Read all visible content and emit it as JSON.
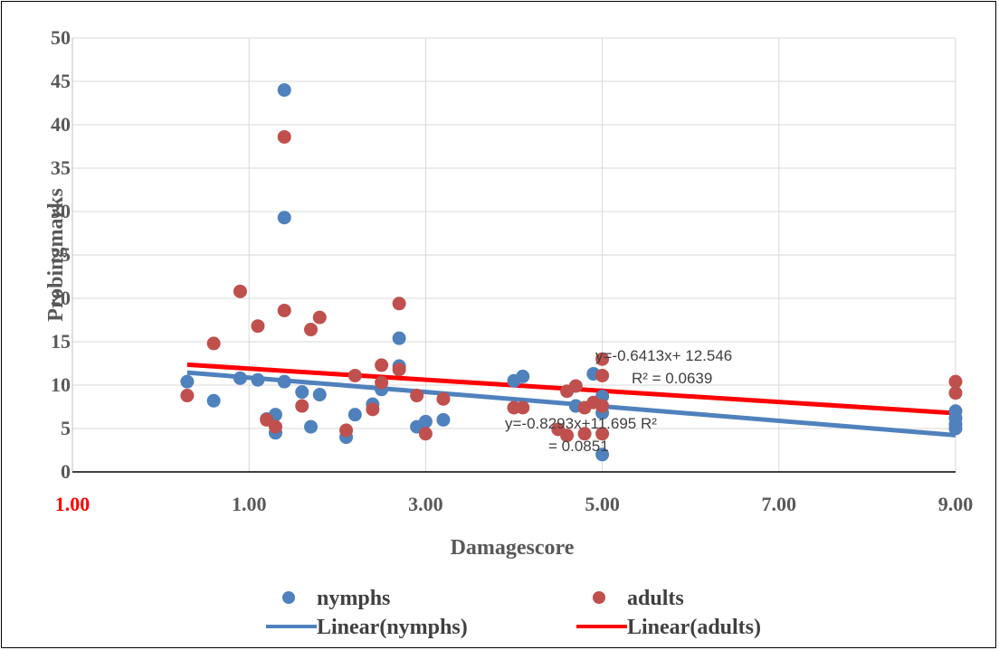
{
  "chart_data": {
    "type": "scatter",
    "title": "",
    "xlabel": "Damagescore",
    "ylabel": "Probingmarks",
    "xlim": [
      -1,
      9
    ],
    "ylim": [
      0,
      50
    ],
    "grid": true,
    "legend_position": "bottom",
    "colors": {
      "nymphs": "#4F81BD",
      "adults": "#C0504D",
      "linear_nymphs": "#4F81BD",
      "linear_adults": "#FF0000",
      "first_tick": "#FF0000"
    },
    "x_ticks": [
      {
        "value": -1,
        "label": "1.00"
      },
      {
        "value": 1,
        "label": "1.00"
      },
      {
        "value": 3,
        "label": "3.00"
      },
      {
        "value": 5,
        "label": "5.00"
      },
      {
        "value": 7,
        "label": "7.00"
      },
      {
        "value": 9,
        "label": "9.00"
      }
    ],
    "y_ticks": [
      0,
      5,
      10,
      15,
      20,
      25,
      30,
      35,
      40,
      45,
      50
    ],
    "series": [
      {
        "name": "nymphs",
        "points": [
          [
            0.3,
            10.4
          ],
          [
            0.6,
            8.2
          ],
          [
            0.9,
            10.8
          ],
          [
            1.1,
            10.6
          ],
          [
            1.2,
            6.1
          ],
          [
            1.3,
            6.6
          ],
          [
            1.3,
            4.5
          ],
          [
            1.4,
            44
          ],
          [
            1.4,
            29.3
          ],
          [
            1.4,
            10.4
          ],
          [
            1.6,
            9.2
          ],
          [
            1.7,
            5.2
          ],
          [
            1.8,
            8.9
          ],
          [
            2.1,
            4.0
          ],
          [
            2.2,
            6.6
          ],
          [
            2.4,
            7.8
          ],
          [
            2.5,
            9.5
          ],
          [
            2.7,
            15.4
          ],
          [
            2.7,
            12.2
          ],
          [
            2.9,
            5.2
          ],
          [
            3.0,
            5.8
          ],
          [
            3.2,
            6.0
          ],
          [
            4.0,
            10.5
          ],
          [
            4.1,
            11.0
          ],
          [
            4.7,
            7.6
          ],
          [
            4.9,
            11.3
          ],
          [
            5.0,
            8.7
          ],
          [
            5.0,
            2.0
          ],
          [
            5.0,
            6.8
          ],
          [
            9.0,
            7.0
          ],
          [
            9.0,
            6.2
          ],
          [
            9.0,
            5.5
          ],
          [
            9.0,
            5.0
          ]
        ]
      },
      {
        "name": "adults",
        "points": [
          [
            0.3,
            8.8
          ],
          [
            0.6,
            14.8
          ],
          [
            0.9,
            20.8
          ],
          [
            1.1,
            16.8
          ],
          [
            1.2,
            6.0
          ],
          [
            1.3,
            5.2
          ],
          [
            1.4,
            38.6
          ],
          [
            1.4,
            18.6
          ],
          [
            1.6,
            7.6
          ],
          [
            1.7,
            16.4
          ],
          [
            1.8,
            17.8
          ],
          [
            2.1,
            4.8
          ],
          [
            2.2,
            11.1
          ],
          [
            2.4,
            7.2
          ],
          [
            2.5,
            12.3
          ],
          [
            2.5,
            10.3
          ],
          [
            2.7,
            19.4
          ],
          [
            2.7,
            11.8
          ],
          [
            2.9,
            8.8
          ],
          [
            3.0,
            4.4
          ],
          [
            3.2,
            8.4
          ],
          [
            4.0,
            7.4
          ],
          [
            4.1,
            7.4
          ],
          [
            4.5,
            4.9
          ],
          [
            4.6,
            9.3
          ],
          [
            4.6,
            4.2
          ],
          [
            4.7,
            9.9
          ],
          [
            4.8,
            7.4
          ],
          [
            4.8,
            4.4
          ],
          [
            4.9,
            8.0
          ],
          [
            5.0,
            13.0
          ],
          [
            5.0,
            11.1
          ],
          [
            5.0,
            7.6
          ],
          [
            5.0,
            4.4
          ],
          [
            9.0,
            10.4
          ],
          [
            9.0,
            9.1
          ]
        ]
      }
    ],
    "trendlines": [
      {
        "name": "Linear(nymphs)",
        "slope": -0.8293,
        "intercept": 11.695,
        "x_range": [
          0.3,
          9.0
        ],
        "label": "y=-0.8293x+11.695 R²",
        "label2": "= 0.0851"
      },
      {
        "name": "Linear(adults)",
        "slope": -0.6413,
        "intercept": 12.546,
        "x_range": [
          0.3,
          9.0
        ],
        "label": "y=-0.6413x+ 12.546",
        "label2": "R² = 0.0639"
      }
    ]
  }
}
